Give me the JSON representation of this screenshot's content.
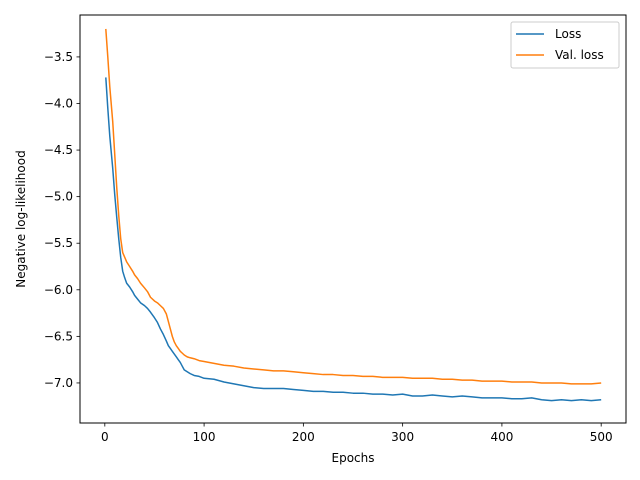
{
  "chart_data": {
    "type": "line",
    "title": "",
    "xlabel": "Epochs",
    "ylabel": "Negative log-likelihood",
    "xlim": [
      -25,
      525
    ],
    "ylim": [
      -7.43,
      -3.05
    ],
    "xticks": [
      0,
      100,
      200,
      300,
      400,
      500
    ],
    "xtick_labels": [
      "0",
      "100",
      "200",
      "300",
      "400",
      "500"
    ],
    "yticks": [
      -3.5,
      -4.0,
      -4.5,
      -5.0,
      -5.5,
      -6.0,
      -6.5,
      -7.0
    ],
    "ytick_labels": [
      "−3.5",
      "−4.0",
      "−4.5",
      "−5.0",
      "−5.5",
      "−6.0",
      "−6.5",
      "−7.0"
    ],
    "grid": false,
    "legend": "top-right",
    "series": [
      {
        "name": "Loss",
        "color": "#1f77b4",
        "x": [
          1,
          3,
          5,
          8,
          10,
          12,
          14,
          16,
          18,
          20,
          22,
          25,
          28,
          30,
          33,
          36,
          40,
          43,
          46,
          50,
          53,
          56,
          59,
          62,
          64,
          66,
          68,
          70,
          72,
          74,
          76,
          78,
          80,
          83,
          86,
          90,
          95,
          100,
          110,
          120,
          130,
          140,
          150,
          160,
          170,
          180,
          190,
          200,
          210,
          220,
          230,
          240,
          250,
          260,
          270,
          280,
          290,
          300,
          310,
          320,
          330,
          340,
          350,
          360,
          370,
          380,
          390,
          400,
          410,
          420,
          430,
          440,
          450,
          460,
          470,
          480,
          490,
          500
        ],
        "y": [
          -3.72,
          -4.05,
          -4.35,
          -4.7,
          -4.98,
          -5.22,
          -5.45,
          -5.65,
          -5.8,
          -5.87,
          -5.93,
          -5.97,
          -6.02,
          -6.06,
          -6.1,
          -6.14,
          -6.17,
          -6.2,
          -6.24,
          -6.3,
          -6.35,
          -6.42,
          -6.48,
          -6.55,
          -6.6,
          -6.63,
          -6.66,
          -6.69,
          -6.72,
          -6.75,
          -6.78,
          -6.82,
          -6.86,
          -6.88,
          -6.9,
          -6.92,
          -6.93,
          -6.95,
          -6.96,
          -6.99,
          -7.01,
          -7.03,
          -7.05,
          -7.06,
          -7.06,
          -7.06,
          -7.07,
          -7.08,
          -7.09,
          -7.09,
          -7.1,
          -7.1,
          -7.11,
          -7.11,
          -7.12,
          -7.12,
          -7.13,
          -7.12,
          -7.14,
          -7.14,
          -7.13,
          -7.14,
          -7.15,
          -7.14,
          -7.15,
          -7.16,
          -7.16,
          -7.16,
          -7.17,
          -7.17,
          -7.16,
          -7.18,
          -7.19,
          -7.18,
          -7.19,
          -7.18,
          -7.19,
          -7.18
        ]
      },
      {
        "name": "Val. loss",
        "color": "#ff7f0e",
        "x": [
          1,
          3,
          5,
          8,
          10,
          12,
          14,
          16,
          18,
          20,
          22,
          25,
          28,
          30,
          33,
          36,
          40,
          43,
          46,
          50,
          53,
          56,
          59,
          62,
          64,
          66,
          68,
          70,
          72,
          74,
          76,
          78,
          80,
          83,
          86,
          90,
          95,
          100,
          110,
          120,
          130,
          140,
          150,
          160,
          170,
          180,
          190,
          200,
          210,
          220,
          230,
          240,
          250,
          260,
          270,
          280,
          290,
          300,
          310,
          320,
          330,
          340,
          350,
          360,
          370,
          380,
          390,
          400,
          410,
          420,
          430,
          440,
          450,
          460,
          470,
          480,
          490,
          500
        ],
        "y": [
          -3.2,
          -3.5,
          -3.82,
          -4.2,
          -4.55,
          -4.9,
          -5.2,
          -5.45,
          -5.6,
          -5.65,
          -5.7,
          -5.75,
          -5.8,
          -5.84,
          -5.88,
          -5.93,
          -5.98,
          -6.02,
          -6.08,
          -6.12,
          -6.14,
          -6.17,
          -6.2,
          -6.26,
          -6.34,
          -6.42,
          -6.5,
          -6.56,
          -6.6,
          -6.63,
          -6.66,
          -6.68,
          -6.7,
          -6.72,
          -6.73,
          -6.74,
          -6.76,
          -6.77,
          -6.79,
          -6.81,
          -6.82,
          -6.84,
          -6.85,
          -6.86,
          -6.87,
          -6.87,
          -6.88,
          -6.89,
          -6.9,
          -6.91,
          -6.91,
          -6.92,
          -6.92,
          -6.93,
          -6.93,
          -6.94,
          -6.94,
          -6.94,
          -6.95,
          -6.95,
          -6.95,
          -6.96,
          -6.96,
          -6.97,
          -6.97,
          -6.98,
          -6.98,
          -6.98,
          -6.99,
          -6.99,
          -6.99,
          -7.0,
          -7.0,
          -7.0,
          -7.01,
          -7.01,
          -7.01,
          -7.0
        ]
      }
    ]
  }
}
